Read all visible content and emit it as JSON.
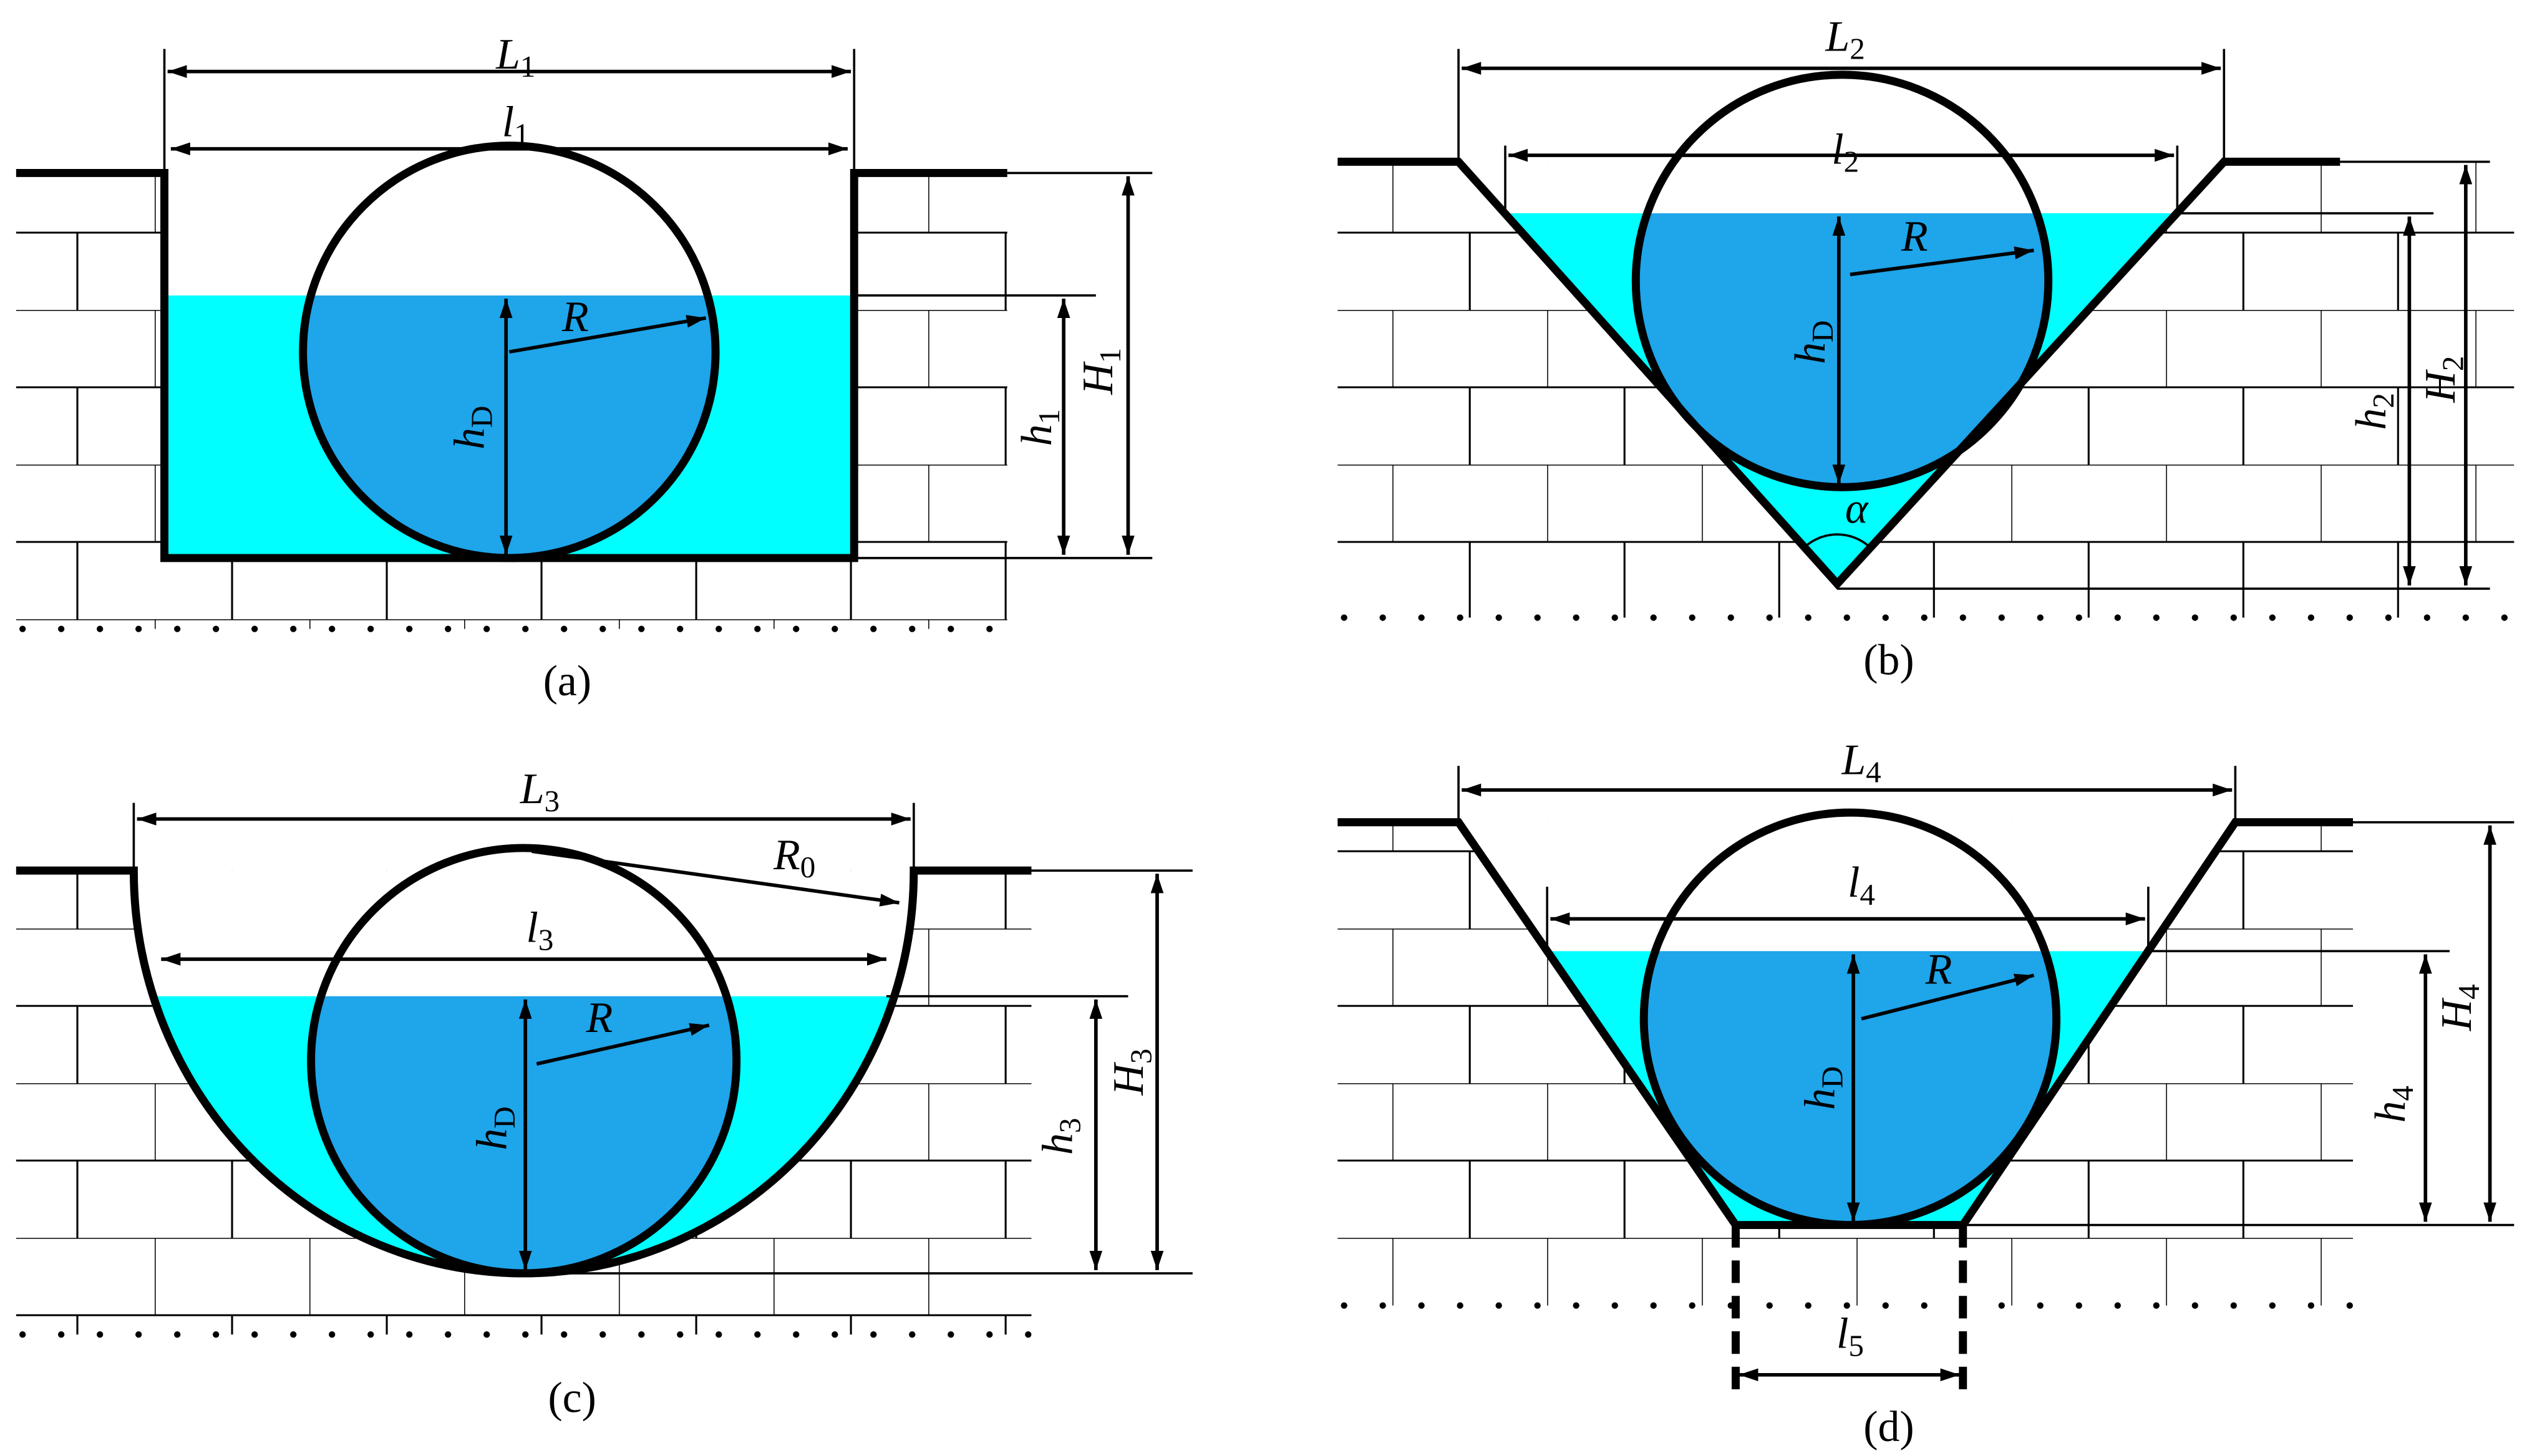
{
  "panels": [
    {
      "caption": "(a)",
      "labels": [
        {
          "symbol": "L",
          "subscript": "1"
        },
        {
          "symbol": "l",
          "subscript": "1"
        },
        {
          "symbol": "R"
        },
        {
          "symbol": "h",
          "subscript": "D"
        },
        {
          "symbol": "h",
          "subscript": "1"
        },
        {
          "symbol": "H",
          "subscript": "1"
        }
      ]
    },
    {
      "caption": "(b)",
      "labels": [
        {
          "symbol": "L",
          "subscript": "2"
        },
        {
          "symbol": "l",
          "subscript": "2"
        },
        {
          "symbol": "R"
        },
        {
          "symbol": "h",
          "subscript": "D"
        },
        {
          "symbol": "h",
          "subscript": "2"
        },
        {
          "symbol": "H",
          "subscript": "2"
        },
        {
          "symbol": "α"
        }
      ]
    },
    {
      "caption": "(c)",
      "labels": [
        {
          "symbol": "L",
          "subscript": "3"
        },
        {
          "symbol": "l",
          "subscript": "3"
        },
        {
          "symbol": "R",
          "subscript": "0"
        },
        {
          "symbol": "R"
        },
        {
          "symbol": "h",
          "subscript": "D"
        },
        {
          "symbol": "h",
          "subscript": "3"
        },
        {
          "symbol": "H",
          "subscript": "3"
        }
      ]
    },
    {
      "caption": "(d)",
      "labels": [
        {
          "symbol": "L",
          "subscript": "4"
        },
        {
          "symbol": "l",
          "subscript": "4"
        },
        {
          "symbol": "R"
        },
        {
          "symbol": "h",
          "subscript": "D"
        },
        {
          "symbol": "h",
          "subscript": "4"
        },
        {
          "symbol": "H",
          "subscript": "4"
        },
        {
          "symbol": "l",
          "subscript": "5"
        }
      ]
    }
  ]
}
